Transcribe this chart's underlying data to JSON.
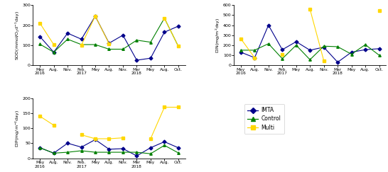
{
  "x_labels_top": [
    "May",
    "Aug.",
    "Nov.",
    "Feb.",
    "May",
    "Aug.",
    "Nov.",
    "Mar",
    "May",
    "Aug.",
    "Oct."
  ],
  "x_labels_year": {
    "0": "2016",
    "3": "2017",
    "7": "2018"
  },
  "SOD": {
    "IMTA": [
      143,
      65,
      160,
      130,
      245,
      110,
      150,
      25,
      35,
      165,
      195
    ],
    "Control": [
      105,
      65,
      130,
      103,
      103,
      80,
      80,
      125,
      115,
      235,
      95
    ],
    "Multi": [
      210,
      103,
      null,
      100,
      245,
      108,
      null,
      null,
      null,
      235,
      95
    ]
  },
  "DIN": {
    "IMTA": [
      130,
      75,
      400,
      155,
      235,
      150,
      180,
      30,
      130,
      155,
      165
    ],
    "Control": [
      150,
      150,
      215,
      65,
      200,
      55,
      190,
      185,
      110,
      205,
      100
    ],
    "Multi": [
      265,
      75,
      null,
      105,
      null,
      560,
      45,
      null,
      null,
      null,
      545
    ]
  },
  "DIP": {
    "IMTA": [
      35,
      17,
      50,
      37,
      62,
      30,
      32,
      8,
      35,
      55,
      35
    ],
    "Control": [
      35,
      17,
      20,
      25,
      20,
      20,
      20,
      20,
      15,
      43,
      18
    ],
    "Multi": [
      140,
      110,
      null,
      78,
      65,
      65,
      68,
      null,
      65,
      170,
      170
    ]
  },
  "colors": {
    "IMTA": "#00008B",
    "Control": "#008000",
    "Multi": "#FFD700"
  },
  "markers": {
    "IMTA": "D",
    "Control": "^",
    "Multi": "s"
  },
  "series": [
    "IMTA",
    "Control",
    "Multi"
  ]
}
